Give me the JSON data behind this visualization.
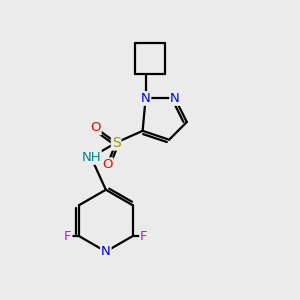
{
  "background_color": "#ebebeb",
  "bond_color": "#000000",
  "line_width": 1.6,
  "atom_colors": {
    "N": "#0000ee",
    "O": "#ff0000",
    "S": "#999900",
    "F": "#ee00ee",
    "H": "#008888",
    "C": "#000000"
  },
  "font_size": 9.5
}
